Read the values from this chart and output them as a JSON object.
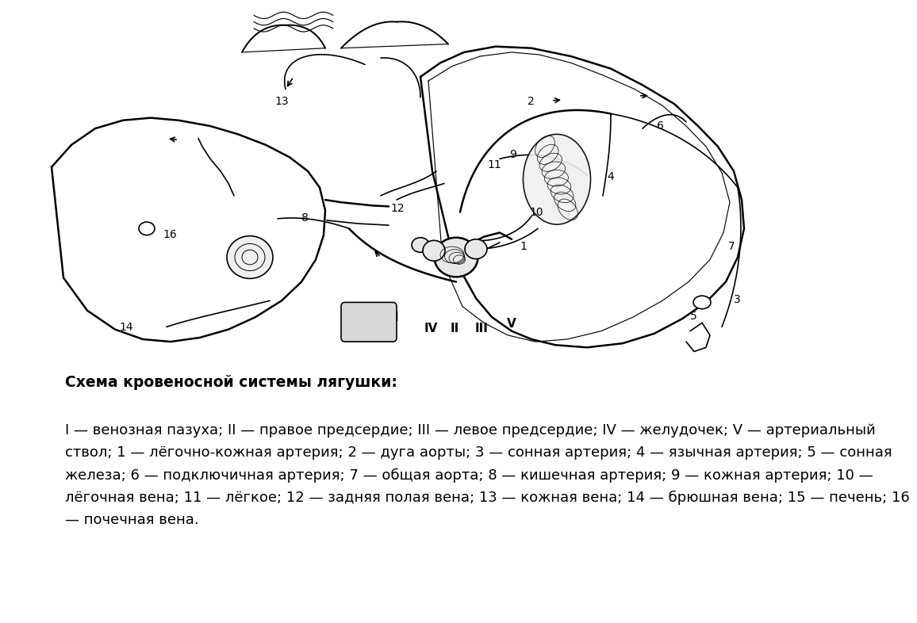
{
  "background_color": "#ffffff",
  "title_text": "Схема кровеносной системы лягушки:",
  "title_fontsize": 13.5,
  "description_text": "I — венозная пазуха; II — правое предсердие; III — левое предсердие; IV — желудочек; V — артериальный\nствол; 1 — лёгочно-кожная артерия; 2 — дуга аорты; 3 — сонная артерия; 4 — язычная артерия; 5 — сонная\nжелеза; 6 — подключичная артерия; 7 — общая аорта; 8 — кишечная артерия; 9 — кожная артерия; 10 —\nлёгочная вена; 11 — лёгкое; 12 — задняя полая вена; 13 — кожная вена; 14 — брюшная вена; 15 — печень; 16\n— почечная вена.",
  "description_fontsize": 13.0,
  "description_linespacing": 1.72,
  "fig_width": 10.24,
  "fig_height": 7.67,
  "lc": "#000000",
  "lw_main": 1.2,
  "lw_thick": 1.8
}
